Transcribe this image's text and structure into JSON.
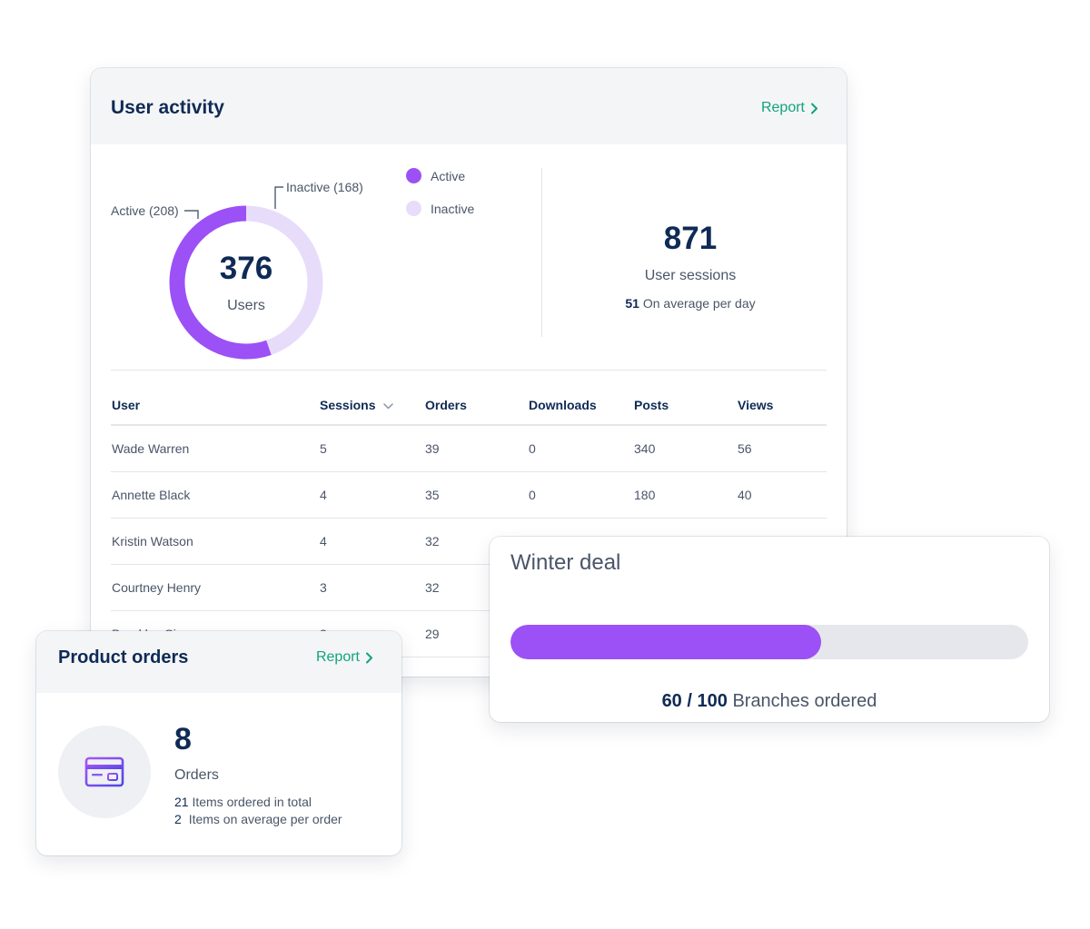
{
  "user_activity": {
    "title": "User activity",
    "report_label": "Report",
    "donut": {
      "total": "376",
      "total_label": "Users",
      "active_value": 208,
      "inactive_value": 168,
      "active_callout": "Active (208)",
      "inactive_callout": "Inactive (168)"
    },
    "legend": [
      {
        "label": "Active",
        "color": "#9b51f5"
      },
      {
        "label": "Inactive",
        "color": "#e8dcfb"
      }
    ],
    "sessions": {
      "value": "871",
      "label": "User sessions",
      "avg_value": "51",
      "avg_label": "On average per day"
    },
    "table": {
      "columns": [
        "User",
        "Sessions",
        "Orders",
        "Downloads",
        "Posts",
        "Views"
      ],
      "rows": [
        [
          "Wade Warren",
          "5",
          "39",
          "0",
          "340",
          "56"
        ],
        [
          "Annette Black",
          "4",
          "35",
          "0",
          "180",
          "40"
        ],
        [
          "Kristin Watson",
          "4",
          "32",
          "",
          "",
          ""
        ],
        [
          "Courtney Henry",
          "3",
          "32",
          "",
          "",
          ""
        ],
        [
          "Brooklyn Simmons",
          "2",
          "29",
          "",
          "",
          ""
        ]
      ]
    }
  },
  "winter_deal": {
    "title": "Winter deal",
    "progress_value": 60,
    "progress_max": 100,
    "current": "60",
    "separator": "/",
    "total": "100",
    "caption": "Branches ordered"
  },
  "product_orders": {
    "title": "Product orders",
    "report_label": "Report",
    "icon": "credit-card-icon",
    "value": "8",
    "label": "Orders",
    "line1_value": "21",
    "line1_label": "Items ordered in total",
    "line2_value": "2",
    "line2_label": "Items on average per order"
  },
  "colors": {
    "accent": "#9b51f5",
    "accent_light": "#e8dcfb",
    "link": "#11a37f",
    "heading": "#0f2a55"
  }
}
